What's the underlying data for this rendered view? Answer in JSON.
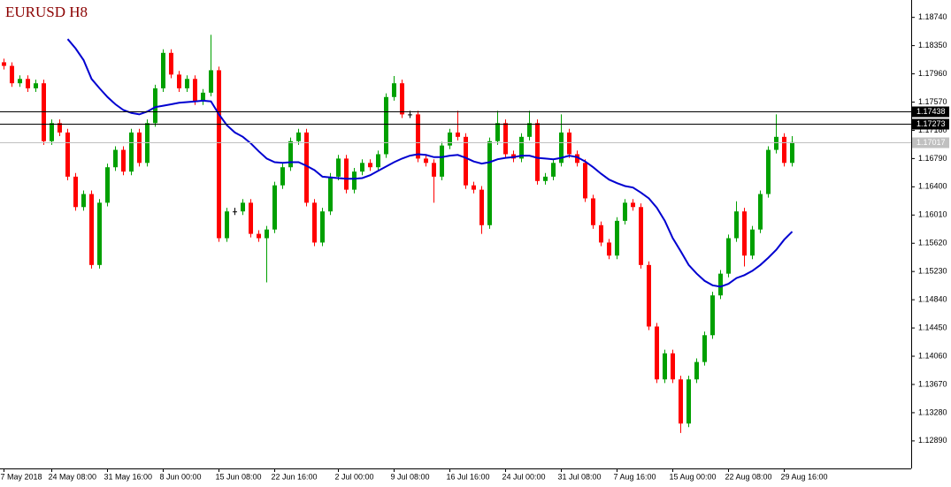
{
  "chart_data": {
    "type": "candlestick",
    "title": "EURUSD H8",
    "up_color": "#00a000",
    "down_color": "#ff0000",
    "categories": [
      "7 May 2018",
      null,
      null,
      null,
      null,
      null,
      "24 May 08:00",
      null,
      null,
      null,
      null,
      null,
      null,
      "31 May 16:00",
      null,
      null,
      null,
      null,
      null,
      null,
      "8 Jun 00:00",
      null,
      null,
      null,
      null,
      null,
      null,
      "15 Jun 08:00",
      null,
      null,
      null,
      null,
      null,
      null,
      "22 Jun 16:00",
      null,
      null,
      null,
      null,
      null,
      null,
      null,
      "2 Jul 00:00",
      null,
      null,
      null,
      null,
      null,
      null,
      "9 Jul 08:00",
      null,
      null,
      null,
      null,
      null,
      null,
      "16 Jul 16:00",
      null,
      null,
      null,
      null,
      null,
      null,
      "24 Jul 00:00",
      null,
      null,
      null,
      null,
      null,
      null,
      "31 Jul 08:00",
      null,
      null,
      null,
      null,
      null,
      null,
      "7 Aug 16:00",
      null,
      null,
      null,
      null,
      null,
      null,
      "15 Aug 00:00",
      null,
      null,
      null,
      null,
      null,
      null,
      "22 Aug 08:00",
      null,
      null,
      null,
      null,
      null,
      null,
      "29 Aug 16:00",
      null
    ],
    "open": [
      1.1812,
      1.1807,
      1.1783,
      1.1789,
      1.1776,
      1.1783,
      1.1703,
      1.1728,
      1.1715,
      1.1654,
      1.1612,
      1.163,
      1.1532,
      1.1618,
      1.1667,
      1.1691,
      1.1661,
      1.1715,
      1.1673,
      1.1728,
      1.1776,
      1.1825,
      1.1795,
      1.1776,
      1.1789,
      1.1758,
      1.177,
      1.1801,
      1.1569,
      1.1606,
      1.1606,
      1.1618,
      1.1575,
      1.1569,
      1.1581,
      1.1642,
      1.1667,
      1.1703,
      1.1715,
      1.1618,
      1.1563,
      1.1606,
      1.1654,
      1.1679,
      1.1636,
      1.1661,
      1.1673,
      1.1667,
      1.1685,
      1.1764,
      1.1783,
      1.174,
      1.174,
      1.1679,
      1.1673,
      1.1654,
      1.1697,
      1.1715,
      1.1709,
      1.1642,
      1.1636,
      1.1587,
      1.1703,
      1.1728,
      1.1685,
      1.1679,
      1.1709,
      1.1728,
      1.1648,
      1.1654,
      1.1673,
      1.1715,
      1.1685,
      1.1673,
      1.1624,
      1.1587,
      1.1563,
      1.1545,
      1.1593,
      1.1618,
      1.1612,
      1.1532,
      1.1447,
      1.1374,
      1.141,
      1.1374,
      1.1313,
      1.1374,
      1.1398,
      1.1435,
      1.149,
      1.152,
      1.1569,
      1.1606,
      1.1545,
      1.1581,
      1.163,
      1.1691,
      1.1709,
      1.1673
    ],
    "high": [
      1.1817,
      1.1812,
      1.1794,
      1.1794,
      1.1788,
      1.1788,
      1.1733,
      1.1733,
      1.172,
      1.1659,
      1.1635,
      1.1635,
      1.1623,
      1.1672,
      1.1696,
      1.1696,
      1.172,
      1.172,
      1.1733,
      1.1781,
      1.183,
      1.183,
      1.18,
      1.1794,
      1.1794,
      1.1775,
      1.185,
      1.1806,
      1.1611,
      1.1611,
      1.1623,
      1.1623,
      1.158,
      1.1586,
      1.1647,
      1.1672,
      1.1708,
      1.172,
      1.172,
      1.1623,
      1.1611,
      1.1659,
      1.1684,
      1.1684,
      1.1666,
      1.1678,
      1.1678,
      1.169,
      1.1769,
      1.1793,
      1.1788,
      1.1745,
      1.1745,
      1.1684,
      1.1678,
      1.1702,
      1.172,
      1.1745,
      1.1714,
      1.1647,
      1.1641,
      1.1708,
      1.1745,
      1.1733,
      1.169,
      1.1714,
      1.1745,
      1.1733,
      1.1659,
      1.1678,
      1.174,
      1.172,
      1.169,
      1.1678,
      1.1629,
      1.1592,
      1.1568,
      1.1598,
      1.1623,
      1.1623,
      1.1617,
      1.1537,
      1.1452,
      1.1415,
      1.1415,
      1.1379,
      1.1379,
      1.1403,
      1.144,
      1.1495,
      1.1525,
      1.1574,
      1.162,
      1.1611,
      1.1586,
      1.1635,
      1.1696,
      1.174,
      1.1714,
      1.171
    ],
    "low": [
      1.1802,
      1.1778,
      1.1778,
      1.1771,
      1.1771,
      1.1698,
      1.1698,
      1.171,
      1.1649,
      1.1607,
      1.1607,
      1.1527,
      1.1527,
      1.1613,
      1.1662,
      1.1656,
      1.1656,
      1.1668,
      1.1668,
      1.1723,
      1.1771,
      1.179,
      1.1771,
      1.1771,
      1.1753,
      1.1753,
      1.1765,
      1.1564,
      1.1564,
      1.1601,
      1.1601,
      1.157,
      1.1564,
      1.1508,
      1.1576,
      1.1637,
      1.1662,
      1.1698,
      1.1613,
      1.1558,
      1.1558,
      1.1601,
      1.1649,
      1.1631,
      1.1631,
      1.1656,
      1.1662,
      1.1662,
      1.168,
      1.1759,
      1.1735,
      1.1735,
      1.1674,
      1.1668,
      1.1618,
      1.1649,
      1.1692,
      1.1704,
      1.1637,
      1.1631,
      1.1575,
      1.1582,
      1.1698,
      1.168,
      1.1674,
      1.1674,
      1.1704,
      1.1643,
      1.1643,
      1.1649,
      1.1668,
      1.168,
      1.1668,
      1.1619,
      1.1582,
      1.1558,
      1.154,
      1.154,
      1.1588,
      1.1607,
      1.1527,
      1.1442,
      1.1369,
      1.1369,
      1.1369,
      1.13,
      1.1308,
      1.1369,
      1.1393,
      1.143,
      1.1485,
      1.1515,
      1.1564,
      1.153,
      1.154,
      1.1576,
      1.1625,
      1.1686,
      1.1668,
      1.1668
    ],
    "close": [
      1.1807,
      1.1783,
      1.1789,
      1.1776,
      1.1783,
      1.1703,
      1.1728,
      1.1715,
      1.1654,
      1.1612,
      1.163,
      1.1532,
      1.1618,
      1.1667,
      1.1691,
      1.1661,
      1.1715,
      1.1673,
      1.1728,
      1.1776,
      1.1825,
      1.1795,
      1.1776,
      1.1789,
      1.1758,
      1.177,
      1.1801,
      1.1569,
      1.1606,
      1.1606,
      1.1618,
      1.1575,
      1.1569,
      1.1581,
      1.1642,
      1.1667,
      1.1703,
      1.1715,
      1.1618,
      1.1563,
      1.1606,
      1.1654,
      1.1679,
      1.1636,
      1.1661,
      1.1673,
      1.1667,
      1.1685,
      1.1764,
      1.1783,
      1.174,
      1.174,
      1.1679,
      1.1673,
      1.1654,
      1.1697,
      1.1715,
      1.1709,
      1.1642,
      1.1636,
      1.1587,
      1.1703,
      1.1728,
      1.1685,
      1.1679,
      1.1709,
      1.1728,
      1.1648,
      1.1654,
      1.1673,
      1.1715,
      1.1685,
      1.1673,
      1.1624,
      1.1587,
      1.1563,
      1.1545,
      1.1593,
      1.1618,
      1.1612,
      1.1532,
      1.1447,
      1.1374,
      1.141,
      1.1374,
      1.1313,
      1.1374,
      1.1398,
      1.1435,
      1.149,
      1.152,
      1.1569,
      1.1606,
      1.1545,
      1.1581,
      1.163,
      1.1691,
      1.1709,
      1.1673,
      1.17017
    ],
    "moving_average": {
      "color": "#0000d0",
      "values": [
        null,
        null,
        null,
        null,
        null,
        null,
        null,
        null,
        1.1844,
        1.1831,
        1.1815,
        1.1789,
        1.1776,
        1.1764,
        1.1754,
        1.1746,
        1.1742,
        1.174,
        1.1744,
        1.175,
        1.1752,
        1.1754,
        1.1756,
        1.1757,
        1.1758,
        1.1759,
        1.1758,
        1.174,
        1.1725,
        1.1715,
        1.1709,
        1.17,
        1.1689,
        1.1679,
        1.1674,
        1.1673,
        1.1674,
        1.1674,
        1.1669,
        1.1663,
        1.1654,
        1.1653,
        1.1652,
        1.1651,
        1.1651,
        1.1652,
        1.1656,
        1.1662,
        1.1668,
        1.1674,
        1.1679,
        1.1683,
        1.1685,
        1.1684,
        1.1681,
        1.1681,
        1.1683,
        1.1684,
        1.168,
        1.1675,
        1.1672,
        1.1674,
        1.1678,
        1.168,
        1.1681,
        1.1683,
        1.1683,
        1.168,
        1.1679,
        1.1678,
        1.168,
        1.1683,
        1.1681,
        1.1675,
        1.1667,
        1.1658,
        1.165,
        1.1645,
        1.1641,
        1.1639,
        1.1632,
        1.1624,
        1.1611,
        1.1593,
        1.1569,
        1.1551,
        1.1532,
        1.152,
        1.151,
        1.1504,
        1.1502,
        1.1506,
        1.1514,
        1.1518,
        1.1524,
        1.1532,
        1.1542,
        1.1553,
        1.1567,
        1.1578
      ]
    },
    "hlines": [
      1.17438,
      1.17273
    ],
    "current_price": 1.17017,
    "ylim": [
      1.1251,
      1.1898
    ],
    "yticks": [
      {
        "value": 1.1874,
        "label": "1.18740"
      },
      {
        "value": 1.1835,
        "label": "1.18350"
      },
      {
        "value": 1.1796,
        "label": "1.17960"
      },
      {
        "value": 1.1757,
        "label": "1.17570"
      },
      {
        "value": 1.1718,
        "label": "1.17180"
      },
      {
        "value": 1.1679,
        "label": "1.16790"
      },
      {
        "value": 1.164,
        "label": "1.16400"
      },
      {
        "value": 1.1601,
        "label": "1.16010"
      },
      {
        "value": 1.1562,
        "label": "1.15620"
      },
      {
        "value": 1.1523,
        "label": "1.15230"
      },
      {
        "value": 1.1484,
        "label": "1.14840"
      },
      {
        "value": 1.1445,
        "label": "1.14450"
      },
      {
        "value": 1.1406,
        "label": "1.14060"
      },
      {
        "value": 1.1367,
        "label": "1.13670"
      },
      {
        "value": 1.1328,
        "label": "1.13280"
      },
      {
        "value": 1.1289,
        "label": "1.12890"
      }
    ],
    "grid": false
  }
}
